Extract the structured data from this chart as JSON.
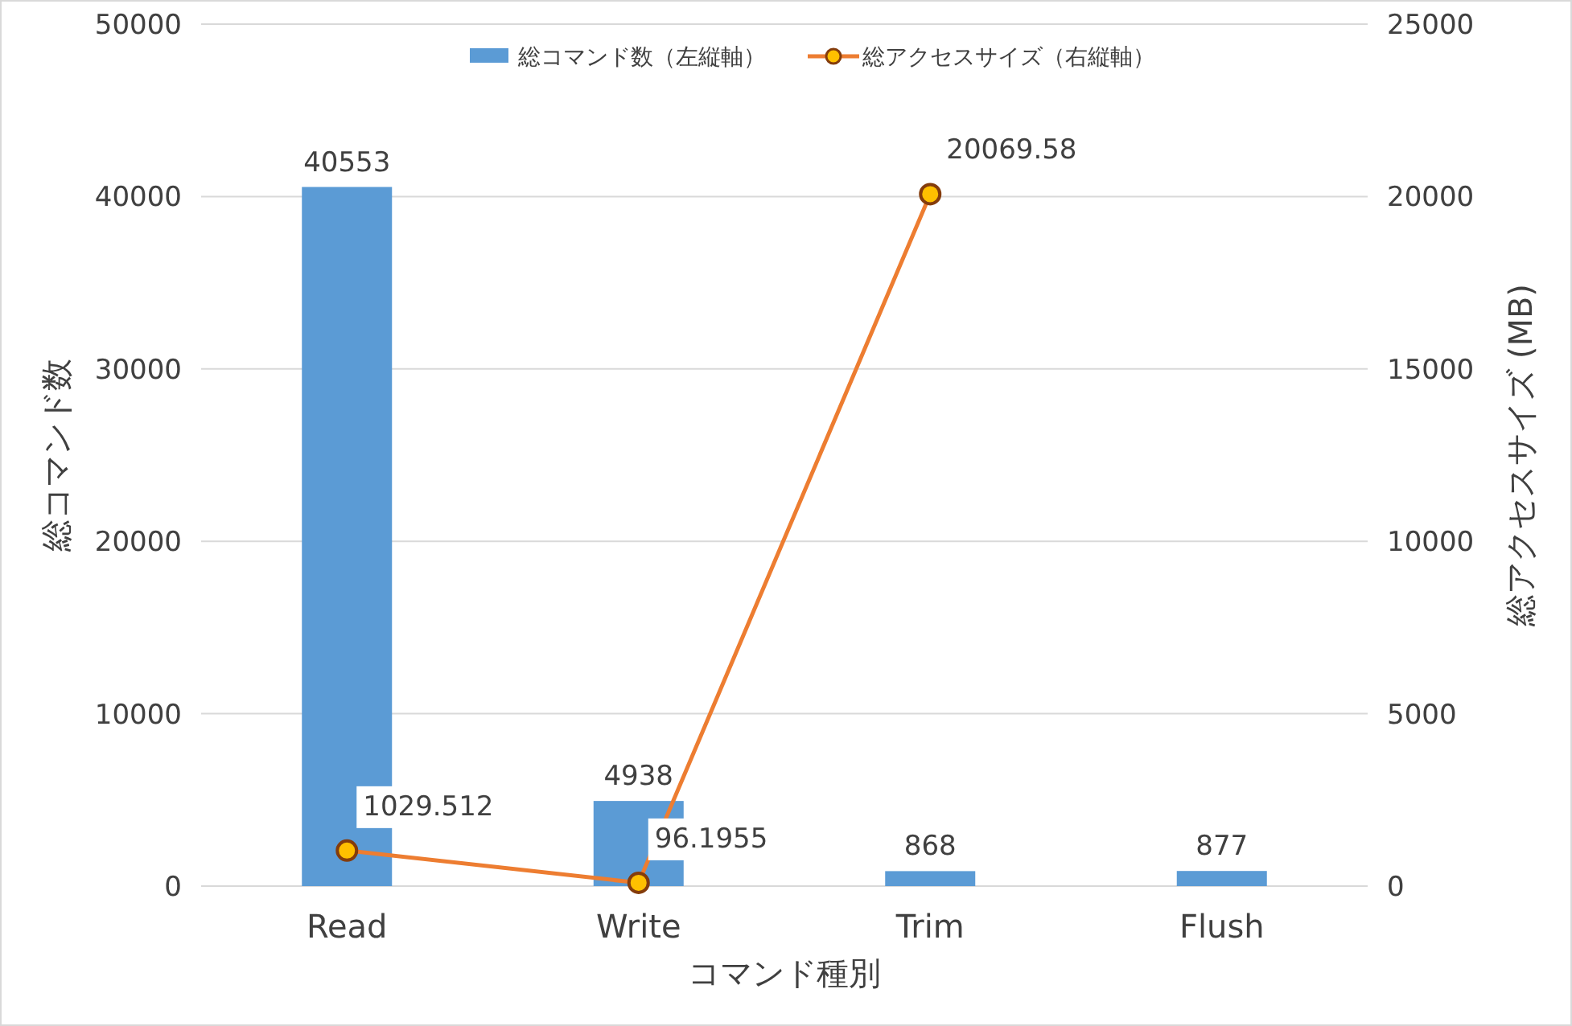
{
  "chart_data": {
    "type": "bar",
    "categories": [
      "Read",
      "Write",
      "Trim",
      "Flush"
    ],
    "xlabel": "コマンド種別",
    "ylabel": "総コマンド数",
    "y2label": "総アクセスサイズ (MB)",
    "ylim": [
      0,
      50000
    ],
    "yticks": [
      0,
      10000,
      20000,
      30000,
      40000,
      50000
    ],
    "y2lim": [
      0,
      25000
    ],
    "y2ticks": [
      0,
      5000,
      10000,
      15000,
      20000,
      25000
    ],
    "grid": "y",
    "legend": "top",
    "data_labels": true,
    "series": [
      {
        "name": "総コマンド数（左縦軸）",
        "color": "#5b9bd5",
        "values": [
          40553,
          4938,
          868,
          877
        ]
      },
      {
        "name": "総アクセスサイズ（右縦軸）",
        "type": "line",
        "axis": "y2",
        "marker": "circle",
        "color": "#ed7d31",
        "values": [
          1029.512,
          96.1955,
          20069.58,
          null
        ]
      }
    ]
  }
}
